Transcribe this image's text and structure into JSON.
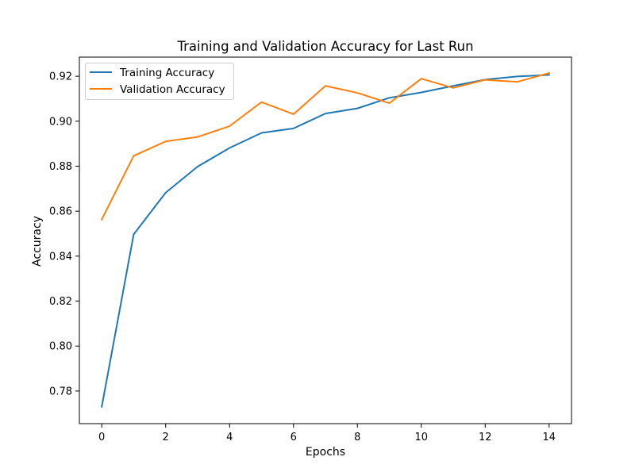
{
  "chart_data": {
    "type": "line",
    "title": "Training and Validation Accuracy for Last Run",
    "xlabel": "Epochs",
    "ylabel": "Accuracy",
    "xlim": [
      -0.7,
      14.7
    ],
    "ylim": [
      0.7655,
      0.9285
    ],
    "xticks": [
      0,
      2,
      4,
      6,
      8,
      10,
      12,
      14
    ],
    "xtick_labels": [
      "0",
      "2",
      "4",
      "6",
      "8",
      "10",
      "12",
      "14"
    ],
    "yticks": [
      0.78,
      0.8,
      0.82,
      0.84,
      0.86,
      0.88,
      0.9,
      0.92
    ],
    "ytick_labels": [
      "0.78",
      "0.80",
      "0.82",
      "0.84",
      "0.86",
      "0.88",
      "0.90",
      "0.92"
    ],
    "grid": false,
    "legend_position": "upper-left",
    "x": [
      0,
      1,
      2,
      3,
      4,
      5,
      6,
      7,
      8,
      9,
      10,
      11,
      12,
      13,
      14
    ],
    "series": [
      {
        "name": "Training Accuracy",
        "color": "#1f77b4",
        "values": [
          0.773,
          0.8497,
          0.8682,
          0.8798,
          0.8881,
          0.8948,
          0.8968,
          0.9034,
          0.9057,
          0.9104,
          0.9128,
          0.9157,
          0.9185,
          0.9199,
          0.9206
        ]
      },
      {
        "name": "Validation Accuracy",
        "color": "#ff7f0e",
        "values": [
          0.8563,
          0.8846,
          0.891,
          0.893,
          0.8978,
          0.9085,
          0.9031,
          0.9157,
          0.9126,
          0.908,
          0.9189,
          0.9148,
          0.9184,
          0.9175,
          0.9214
        ]
      }
    ]
  }
}
